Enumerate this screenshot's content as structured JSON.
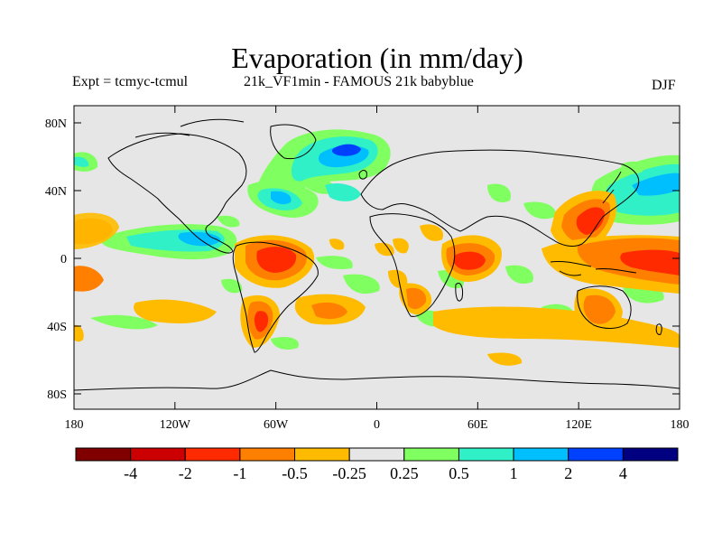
{
  "header": {
    "title": "Evaporation (in mm/day)",
    "expt": "Expt = tcmyc-tcmul",
    "subtitle": "21k_VF1min - FAMOUS 21k babyblue",
    "season": "DJF"
  },
  "axes": {
    "lat_labels": [
      "80N",
      "40N",
      "0",
      "40S",
      "80S"
    ],
    "lon_labels": [
      "180",
      "120W",
      "60W",
      "0",
      "60E",
      "120E",
      "180"
    ]
  },
  "colorbar": {
    "labels": [
      "-4",
      "-2",
      "-1",
      "-0.5",
      "-0.25",
      "0.25",
      "0.5",
      "1",
      "2",
      "4"
    ],
    "colors": [
      "#800000",
      "#cc0000",
      "#ff2a00",
      "#ff7f00",
      "#ffbb00",
      "#e6e6e6",
      "#80ff60",
      "#30f0c8",
      "#00bfff",
      "#0040ff",
      "#000080"
    ]
  },
  "colors": {
    "background": "#e6e6e6",
    "coast": "#000000"
  }
}
